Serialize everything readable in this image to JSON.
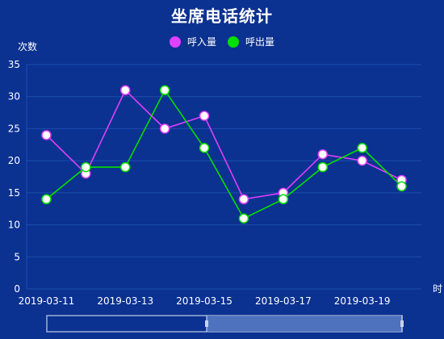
{
  "chart_data": {
    "type": "line",
    "title": "坐席电话统计",
    "ylabel": "次数",
    "xlabel": "时",
    "ylim": [
      0,
      35
    ],
    "y_ticks": [
      0,
      5,
      10,
      15,
      20,
      25,
      30,
      35
    ],
    "x": [
      "2019-03-11",
      "2019-03-12",
      "2019-03-13",
      "2019-03-14",
      "2019-03-15",
      "2019-03-16",
      "2019-03-17",
      "2019-03-18",
      "2019-03-19",
      "2019-03-20"
    ],
    "x_tick_labels": [
      "2019-03-11",
      "2019-03-13",
      "2019-03-15",
      "2019-03-17",
      "2019-03-19"
    ],
    "series": [
      {
        "name": "呼入量",
        "color": "#e040fb",
        "values": [
          24,
          18,
          31,
          25,
          27,
          14,
          15,
          21,
          20,
          17
        ]
      },
      {
        "name": "呼出量",
        "color": "#00e000",
        "values": [
          14,
          19,
          19,
          31,
          22,
          11,
          14,
          19,
          22,
          16
        ]
      }
    ],
    "grid": true,
    "legend_position": "top-center"
  },
  "data_zoom": {
    "range_percent": [
      45,
      100
    ]
  }
}
